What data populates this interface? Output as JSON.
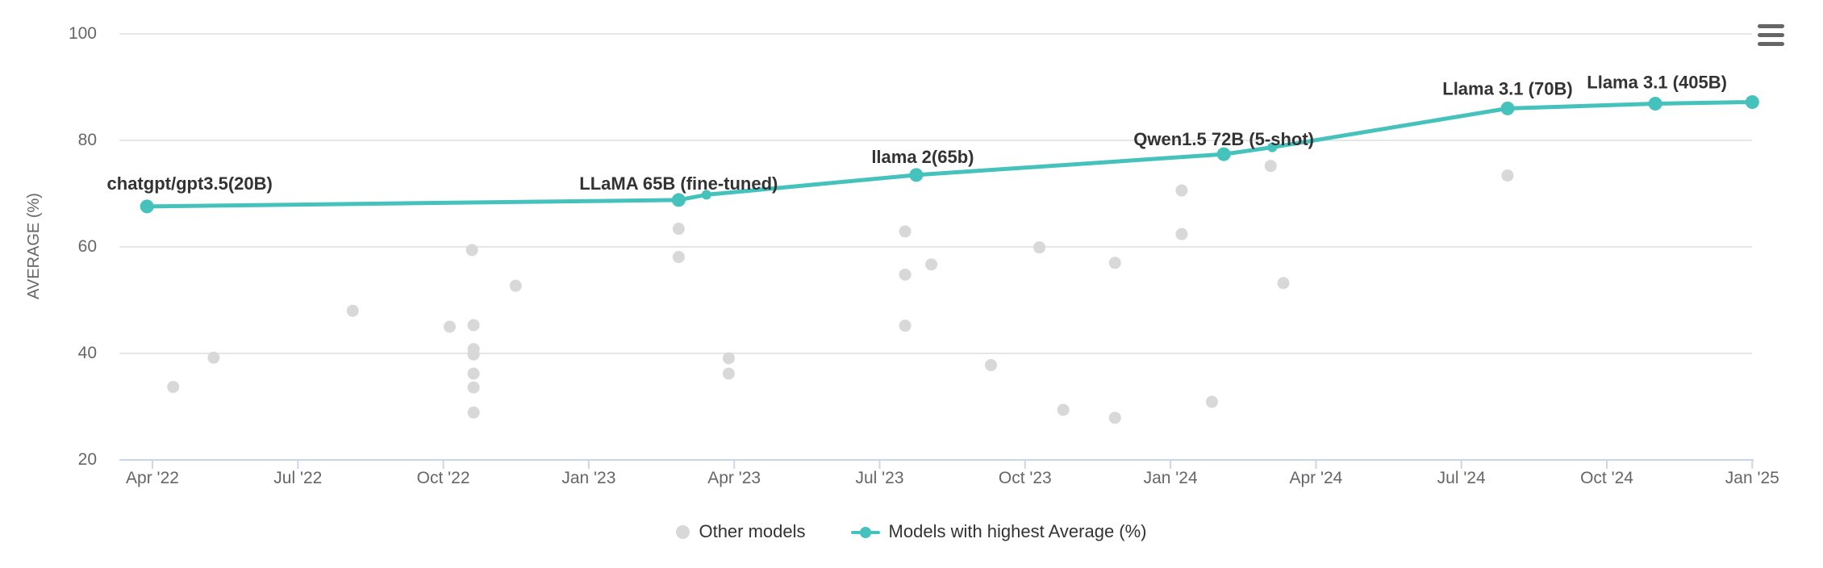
{
  "chart_data": {
    "type": "scatter",
    "title": "",
    "xlabel": "",
    "ylabel": "AVERAGE (%)",
    "ylim": [
      20,
      100
    ],
    "grid": "horizontal",
    "legend_position": "bottom-center",
    "y_ticks": [
      100,
      80,
      60,
      40,
      20
    ],
    "x_ticks": [
      {
        "label": "Apr '22",
        "date": "2022-04-01"
      },
      {
        "label": "Jul '22",
        "date": "2022-07-01"
      },
      {
        "label": "Oct '22",
        "date": "2022-10-01"
      },
      {
        "label": "Jan '23",
        "date": "2023-01-01"
      },
      {
        "label": "Apr '23",
        "date": "2023-04-01"
      },
      {
        "label": "Jul '23",
        "date": "2023-07-01"
      },
      {
        "label": "Oct '23",
        "date": "2023-10-01"
      },
      {
        "label": "Jan '24",
        "date": "2024-01-01"
      },
      {
        "label": "Apr '24",
        "date": "2024-04-01"
      },
      {
        "label": "Jul '24",
        "date": "2024-07-01"
      },
      {
        "label": "Oct '24",
        "date": "2024-10-01"
      },
      {
        "label": "Jan '25",
        "date": "2025-01-01"
      }
    ],
    "colors": {
      "highlight_line": "#45c2bc",
      "other_models": "#d8d8d8",
      "axis_line": "#ccd6eb",
      "gridline": "#e6e6e6",
      "tick_text": "#666666",
      "label_text": "#333333"
    },
    "series": [
      {
        "name": "Other models",
        "type": "scatter",
        "color": "#d8d8d8",
        "points": [
          {
            "date": "2022-04-14",
            "value": 33.7
          },
          {
            "date": "2022-05-09",
            "value": 39.2
          },
          {
            "date": "2022-08-05",
            "value": 48.0
          },
          {
            "date": "2022-10-05",
            "value": 45.0
          },
          {
            "date": "2022-10-19",
            "value": 59.4
          },
          {
            "date": "2022-10-20",
            "value": 45.3
          },
          {
            "date": "2022-10-20",
            "value": 40.8
          },
          {
            "date": "2022-10-20",
            "value": 39.8
          },
          {
            "date": "2022-10-20",
            "value": 36.2
          },
          {
            "date": "2022-10-20",
            "value": 33.6
          },
          {
            "date": "2022-10-20",
            "value": 28.9
          },
          {
            "date": "2022-11-16",
            "value": 52.7
          },
          {
            "date": "2023-02-27",
            "value": 63.4
          },
          {
            "date": "2023-02-27",
            "value": 58.1
          },
          {
            "date": "2023-03-28",
            "value": 39.1
          },
          {
            "date": "2023-03-28",
            "value": 36.2
          },
          {
            "date": "2023-07-17",
            "value": 62.9
          },
          {
            "date": "2023-07-17",
            "value": 54.8
          },
          {
            "date": "2023-08-03",
            "value": 56.7
          },
          {
            "date": "2023-07-17",
            "value": 45.2
          },
          {
            "date": "2023-09-10",
            "value": 37.8
          },
          {
            "date": "2023-10-10",
            "value": 59.9
          },
          {
            "date": "2023-10-25",
            "value": 29.4
          },
          {
            "date": "2023-11-27",
            "value": 57.0
          },
          {
            "date": "2023-11-27",
            "value": 27.9
          },
          {
            "date": "2024-01-08",
            "value": 70.6
          },
          {
            "date": "2024-01-08",
            "value": 62.4
          },
          {
            "date": "2024-01-27",
            "value": 30.9
          },
          {
            "date": "2024-03-03",
            "value": 75.2
          },
          {
            "date": "2024-03-11",
            "value": 53.2
          },
          {
            "date": "2024-07-30",
            "value": 73.4
          }
        ]
      },
      {
        "name": "Models with highest Average (%)",
        "type": "line",
        "color": "#45c2bc",
        "points": [
          {
            "date": "2022-03-28",
            "value": 67.6,
            "label": "chatgpt/gpt3.5(20B)",
            "label_dx": 53,
            "label_dy": -21
          },
          {
            "date": "2023-02-27",
            "value": 68.8,
            "label": "LLaMA 65B (fine-tuned)",
            "label_dx": 0,
            "label_dy": -13
          },
          {
            "date": "2023-03-14",
            "value": 69.8,
            "small": true
          },
          {
            "date": "2023-07-24",
            "value": 73.5,
            "label": "llama 2(65b)",
            "label_dx": 8,
            "label_dy": -15
          },
          {
            "date": "2024-02-04",
            "value": 77.4,
            "label": "Qwen1.5 72B (5-shot)",
            "label_dx": 0,
            "label_dy": -11
          },
          {
            "date": "2024-03-04",
            "value": 78.7,
            "small": true
          },
          {
            "date": "2024-07-30",
            "value": 86.0,
            "label": "Llama 3.1 (70B)",
            "label_dx": 0,
            "label_dy": -17
          },
          {
            "date": "2024-11-01",
            "value": 86.9,
            "label": "Llama 3.1 (405B)",
            "label_dx": 2,
            "label_dy": -19
          },
          {
            "date": "2025-01-01",
            "value": 87.2
          }
        ]
      }
    ]
  },
  "icons": {
    "context_menu": "hamburger-menu-icon"
  }
}
